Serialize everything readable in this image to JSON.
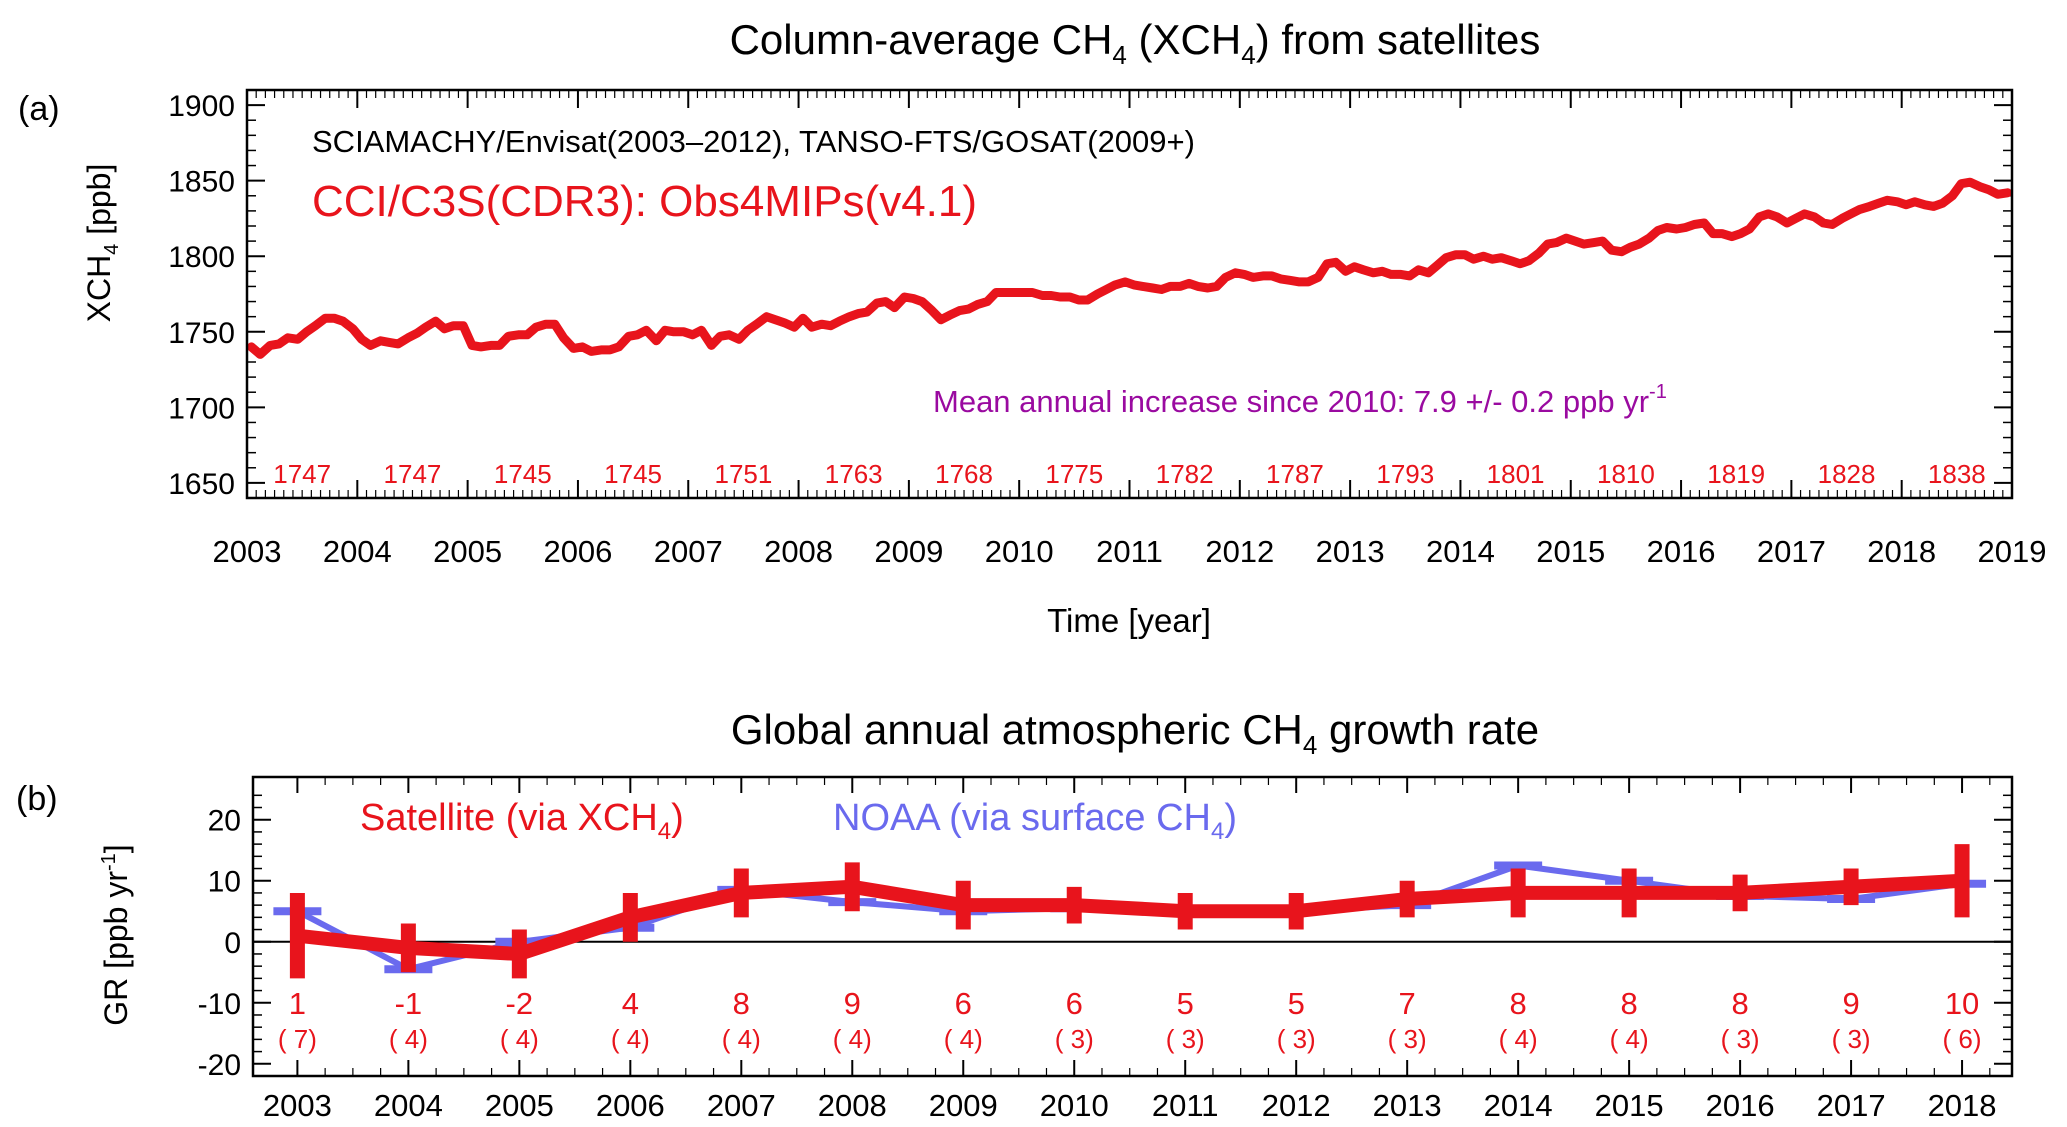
{
  "chart_data": [
    {
      "type": "line",
      "panel_label": "(a)",
      "title_main": "Column-average CH",
      "title_sub": "4",
      "title_mid": " (XCH",
      "title_sub2": "4",
      "title_end": ") from satellites",
      "ylabel_main": "XCH",
      "ylabel_sub": "4",
      "ylabel_end": " [ppb]",
      "xlabel": "Time [year]",
      "xlim": [
        2003,
        2019
      ],
      "ylim": [
        1640,
        1910
      ],
      "x_ticks": [
        2003,
        2004,
        2005,
        2006,
        2007,
        2008,
        2009,
        2010,
        2011,
        2012,
        2013,
        2014,
        2015,
        2016,
        2017,
        2018,
        2019
      ],
      "y_ticks": [
        1650,
        1700,
        1750,
        1800,
        1850,
        1900
      ],
      "sensors_text": "SCIAMACHY/Envisat(2003–2012), TANSO-FTS/GOSAT(2009+)",
      "product_text": "CCI/C3S(CDR3): Obs4MIPs(v4.1)",
      "trend_text": "Mean annual increase since 2010:  7.9 +/- 0.2 ppb yr",
      "trend_sup": "-1",
      "annual_means": [
        {
          "year": "2003",
          "value": "1747"
        },
        {
          "year": "2004",
          "value": "1747"
        },
        {
          "year": "2005",
          "value": "1745"
        },
        {
          "year": "2006",
          "value": "1745"
        },
        {
          "year": "2007",
          "value": "1751"
        },
        {
          "year": "2008",
          "value": "1763"
        },
        {
          "year": "2009",
          "value": "1768"
        },
        {
          "year": "2010",
          "value": "1775"
        },
        {
          "year": "2011",
          "value": "1782"
        },
        {
          "year": "2012",
          "value": "1787"
        },
        {
          "year": "2013",
          "value": "1793"
        },
        {
          "year": "2014",
          "value": "1801"
        },
        {
          "year": "2015",
          "value": "1810"
        },
        {
          "year": "2016",
          "value": "1819"
        },
        {
          "year": "2017",
          "value": "1828"
        },
        {
          "year": "2018",
          "value": "1838"
        }
      ],
      "series": [
        {
          "color": "#e8141c",
          "x": [
            2003.04,
            2003.12,
            2003.21,
            2003.29,
            2003.37,
            2003.46,
            2003.54,
            2003.62,
            2003.71,
            2003.79,
            2003.87,
            2003.96,
            2004.04,
            2004.12,
            2004.21,
            2004.29,
            2004.37,
            2004.46,
            2004.54,
            2004.62,
            2004.71,
            2004.79,
            2004.87,
            2004.96,
            2005.04,
            2005.12,
            2005.21,
            2005.29,
            2005.37,
            2005.46,
            2005.54,
            2005.62,
            2005.71,
            2005.79,
            2005.87,
            2005.96,
            2006.04,
            2006.12,
            2006.21,
            2006.29,
            2006.37,
            2006.46,
            2006.54,
            2006.62,
            2006.71,
            2006.79,
            2006.87,
            2006.96,
            2007.04,
            2007.12,
            2007.21,
            2007.29,
            2007.37,
            2007.46,
            2007.54,
            2007.62,
            2007.71,
            2007.79,
            2007.87,
            2007.96,
            2008.04,
            2008.12,
            2008.21,
            2008.29,
            2008.37,
            2008.46,
            2008.54,
            2008.62,
            2008.71,
            2008.79,
            2008.87,
            2008.96,
            2009.04,
            2009.12,
            2009.21,
            2009.29,
            2009.37,
            2009.46,
            2009.54,
            2009.62,
            2009.71,
            2009.79,
            2009.87,
            2009.96,
            2010.04,
            2010.12,
            2010.21,
            2010.29,
            2010.37,
            2010.46,
            2010.54,
            2010.62,
            2010.71,
            2010.79,
            2010.87,
            2010.96,
            2011.04,
            2011.12,
            2011.21,
            2011.29,
            2011.37,
            2011.46,
            2011.54,
            2011.62,
            2011.71,
            2011.79,
            2011.87,
            2011.96,
            2012.04,
            2012.12,
            2012.21,
            2012.29,
            2012.37,
            2012.46,
            2012.54,
            2012.62,
            2012.71,
            2012.79,
            2012.87,
            2012.96,
            2013.04,
            2013.12,
            2013.21,
            2013.29,
            2013.37,
            2013.46,
            2013.54,
            2013.62,
            2013.71,
            2013.79,
            2013.87,
            2013.96,
            2014.04,
            2014.12,
            2014.21,
            2014.29,
            2014.37,
            2014.46,
            2014.54,
            2014.62,
            2014.71,
            2014.79,
            2014.87,
            2014.96,
            2015.04,
            2015.12,
            2015.21,
            2015.29,
            2015.37,
            2015.46,
            2015.54,
            2015.62,
            2015.71,
            2015.79,
            2015.87,
            2015.96,
            2016.04,
            2016.12,
            2016.21,
            2016.29,
            2016.37,
            2016.46,
            2016.54,
            2016.62,
            2016.71,
            2016.79,
            2016.87,
            2016.96,
            2017.04,
            2017.12,
            2017.21,
            2017.29,
            2017.37,
            2017.46,
            2017.54,
            2017.62,
            2017.71,
            2017.79,
            2017.87,
            2017.96,
            2018.04,
            2018.12,
            2018.21,
            2018.29,
            2018.37,
            2018.46,
            2018.54,
            2018.62,
            2018.71,
            2018.79,
            2018.87,
            2018.96
          ],
          "y": [
            1740,
            1735,
            1741,
            1742,
            1746,
            1745,
            1750,
            1754,
            1759,
            1759,
            1757,
            1752,
            1745,
            1741,
            1744,
            1743,
            1742,
            1746,
            1749,
            1753,
            1757,
            1752,
            1754,
            1754,
            1741,
            1740,
            1741,
            1741,
            1747,
            1748,
            1748,
            1753,
            1755,
            1755,
            1746,
            1739,
            1740,
            1737,
            1738,
            1738,
            1740,
            1747,
            1748,
            1751,
            1744,
            1751,
            1750,
            1750,
            1748,
            1751,
            1741,
            1747,
            1748,
            1745,
            1751,
            1755,
            1760,
            1758,
            1756,
            1753,
            1759,
            1753,
            1755,
            1754,
            1757,
            1760,
            1762,
            1763,
            1769,
            1770,
            1766,
            1773,
            1772,
            1770,
            1764,
            1758,
            1761,
            1764,
            1765,
            1768,
            1770,
            1776,
            1776,
            1776,
            1776,
            1776,
            1774,
            1774,
            1773,
            1773,
            1771,
            1771,
            1775,
            1778,
            1781,
            1783,
            1781,
            1780,
            1779,
            1778,
            1780,
            1780,
            1782,
            1780,
            1779,
            1780,
            1786,
            1789,
            1788,
            1786,
            1787,
            1787,
            1785,
            1784,
            1783,
            1783,
            1786,
            1795,
            1796,
            1790,
            1793,
            1791,
            1789,
            1790,
            1788,
            1788,
            1787,
            1791,
            1789,
            1794,
            1799,
            1801,
            1801,
            1798,
            1800,
            1798,
            1799,
            1797,
            1795,
            1797,
            1802,
            1808,
            1809,
            1812,
            1810,
            1808,
            1809,
            1810,
            1804,
            1803,
            1806,
            1808,
            1812,
            1817,
            1819,
            1818,
            1819,
            1821,
            1822,
            1815,
            1815,
            1813,
            1815,
            1818,
            1826,
            1828,
            1826,
            1822,
            1825,
            1828,
            1826,
            1822,
            1821,
            1825,
            1828,
            1831,
            1833,
            1835,
            1837,
            1836,
            1834,
            1836,
            1834,
            1833,
            1835,
            1840,
            1848,
            1849,
            1846,
            1844,
            1841,
            1842
          ]
        }
      ]
    },
    {
      "type": "line",
      "panel_label": "(b)",
      "title_main": "Global annual atmospheric CH",
      "title_sub": "4",
      "title_end": " growth rate",
      "ylabel_main": "GR [ppb yr",
      "ylabel_sup": "-1",
      "ylabel_end": "]",
      "xlim": [
        2002.6,
        2018.45
      ],
      "ylim": [
        -22,
        27
      ],
      "y_ticks": [
        -20,
        -10,
        0,
        10,
        20
      ],
      "categories": [
        "2003",
        "2004",
        "2005",
        "2006",
        "2007",
        "2008",
        "2009",
        "2010",
        "2011",
        "2012",
        "2013",
        "2014",
        "2015",
        "2016",
        "2017",
        "2018"
      ],
      "legend_satellite_main": "Satellite (via XCH",
      "legend_satellite_sub": "4",
      "legend_satellite_end": ")",
      "legend_noaa_main": "NOAA (via surface CH",
      "legend_noaa_sub": "4",
      "legend_noaa_end": ")",
      "value_labels": [
        "1",
        "-1",
        "-2",
        "4",
        "8",
        "9",
        "6",
        "6",
        "5",
        "5",
        "7",
        "8",
        "8",
        "8",
        "9",
        "10"
      ],
      "error_labels": [
        "( 7)",
        "( 4)",
        "( 4)",
        "( 4)",
        "( 4)",
        "( 4)",
        "( 4)",
        "( 3)",
        "( 3)",
        "( 3)",
        "( 3)",
        "( 4)",
        "( 4)",
        "( 3)",
        "( 3)",
        "( 6)"
      ],
      "series": [
        {
          "key": "satellite",
          "color": "#e8141c",
          "values": [
            1,
            -1,
            -2,
            4,
            8,
            9,
            6,
            6,
            5,
            5,
            7,
            8,
            8,
            8,
            9,
            10
          ],
          "errors": [
            7,
            4,
            4,
            4,
            4,
            4,
            4,
            3,
            3,
            3,
            3,
            4,
            4,
            3,
            3,
            6
          ]
        },
        {
          "key": "noaa",
          "color": "#6a6aee",
          "values": [
            5,
            -4.5,
            0,
            2.3,
            8.5,
            6.5,
            5,
            5.5,
            5,
            5,
            6,
            12.5,
            10,
            7.5,
            7,
            9.5
          ]
        }
      ]
    }
  ]
}
